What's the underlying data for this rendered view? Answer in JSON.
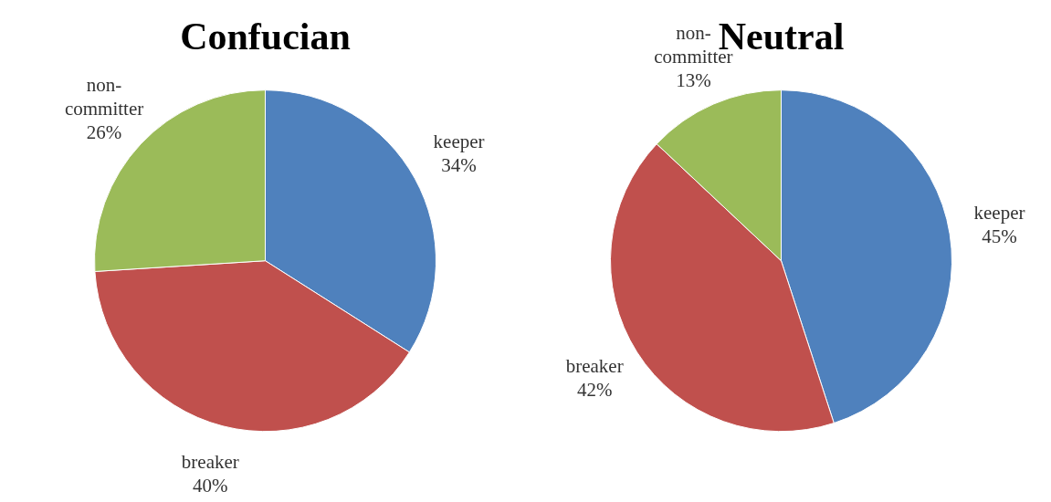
{
  "chart_data": [
    {
      "type": "pie",
      "title": "Confucian",
      "categories": [
        "keeper",
        "breaker",
        "non-committer"
      ],
      "values": [
        34,
        40,
        26
      ],
      "value_labels": [
        "34%",
        "40%",
        "26%"
      ],
      "colors": [
        "#4f81bd",
        "#c0504d",
        "#9bbb59"
      ]
    },
    {
      "type": "pie",
      "title": "Neutral",
      "categories": [
        "keeper",
        "breaker",
        "non-committer"
      ],
      "values": [
        45,
        42,
        13
      ],
      "value_labels": [
        "45%",
        "42%",
        "13%"
      ],
      "colors": [
        "#4f81bd",
        "#c0504d",
        "#9bbb59"
      ]
    }
  ]
}
